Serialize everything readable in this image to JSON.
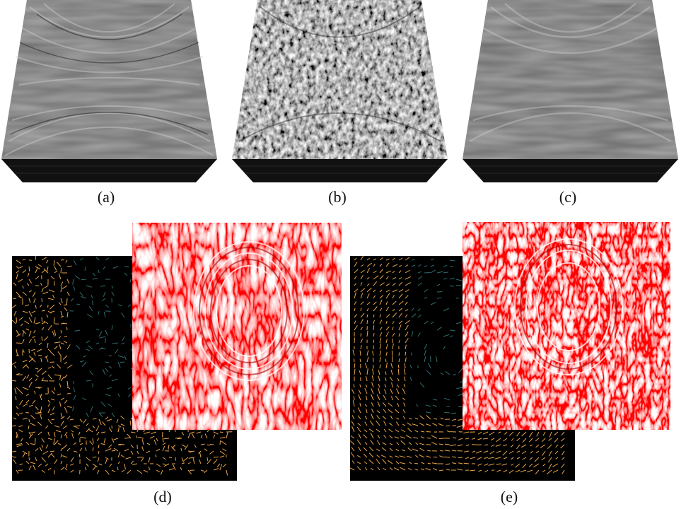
{
  "figure": {
    "panels": [
      {
        "id": "a",
        "caption": "(a)",
        "kind": "lic-cube-smooth"
      },
      {
        "id": "b",
        "caption": "(b)",
        "kind": "lic-cube-noisy"
      },
      {
        "id": "c",
        "caption": "(c)",
        "kind": "lic-cube-smooth"
      },
      {
        "id": "d",
        "caption": "(d)",
        "kind": "vector-glyphs-with-red-lic-overlay"
      },
      {
        "id": "e",
        "caption": "(e)",
        "kind": "vector-glyphs-with-red-lic-overlay"
      }
    ],
    "colors": {
      "background": "#ffffff",
      "lic_light": "#c8c8c8",
      "lic_dark": "#2a2a2a",
      "glyph_background": "#000000",
      "glyph_orange": "#e8a44a",
      "glyph_teal": "#2f6f73",
      "overlay_red": "#e01818",
      "overlay_white": "#ffffff"
    }
  }
}
